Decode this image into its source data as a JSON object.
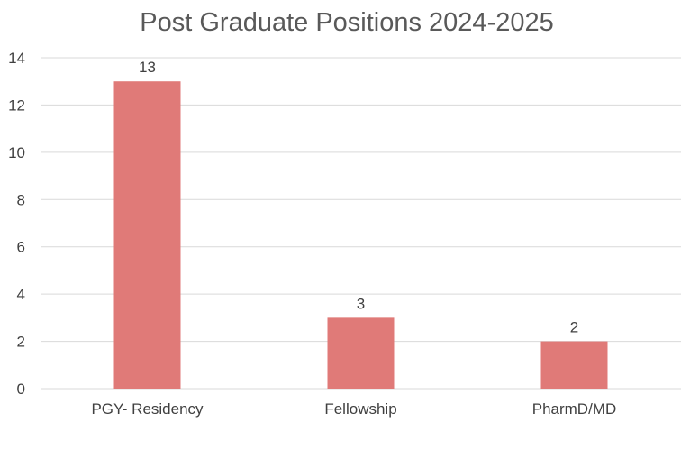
{
  "chart_data": {
    "type": "bar",
    "title": "Post Graduate Positions 2024-2025",
    "categories": [
      "PGY- Residency",
      "Fellowship",
      "PharmD/MD"
    ],
    "values": [
      13,
      3,
      2
    ],
    "data_labels": [
      "13",
      "3",
      "2"
    ],
    "xlabel": "",
    "ylabel": "",
    "ylim": [
      0,
      14
    ],
    "yticks": [
      "0",
      "2",
      "4",
      "6",
      "8",
      "10",
      "12",
      "14"
    ],
    "grid": true,
    "legend": "none",
    "bar_color": "#e07a78"
  }
}
